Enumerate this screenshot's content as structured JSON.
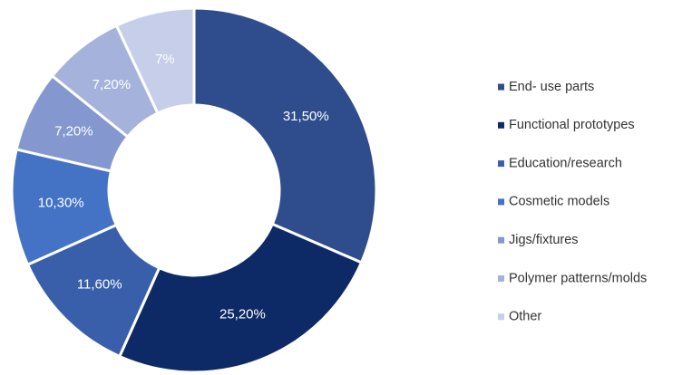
{
  "chart_data": {
    "type": "donut",
    "categories": [
      "End- use parts",
      "Functional prototypes",
      "Education/research",
      "Cosmetic models",
      "Jigs/fixtures",
      "Polymer patterns/molds",
      "Other"
    ],
    "values": [
      31.5,
      25.2,
      11.6,
      10.3,
      7.2,
      7.2,
      7
    ],
    "value_labels": [
      "31,50%",
      "25,20%",
      "11,60%",
      "10,30%",
      "7,20%",
      "7,20%",
      "7%"
    ],
    "colors": [
      "#2F4D8C",
      "#0E2A66",
      "#3A5FAA",
      "#4472C4",
      "#8497CF",
      "#A5B3DC",
      "#C6CEE9"
    ],
    "legend": "right"
  }
}
